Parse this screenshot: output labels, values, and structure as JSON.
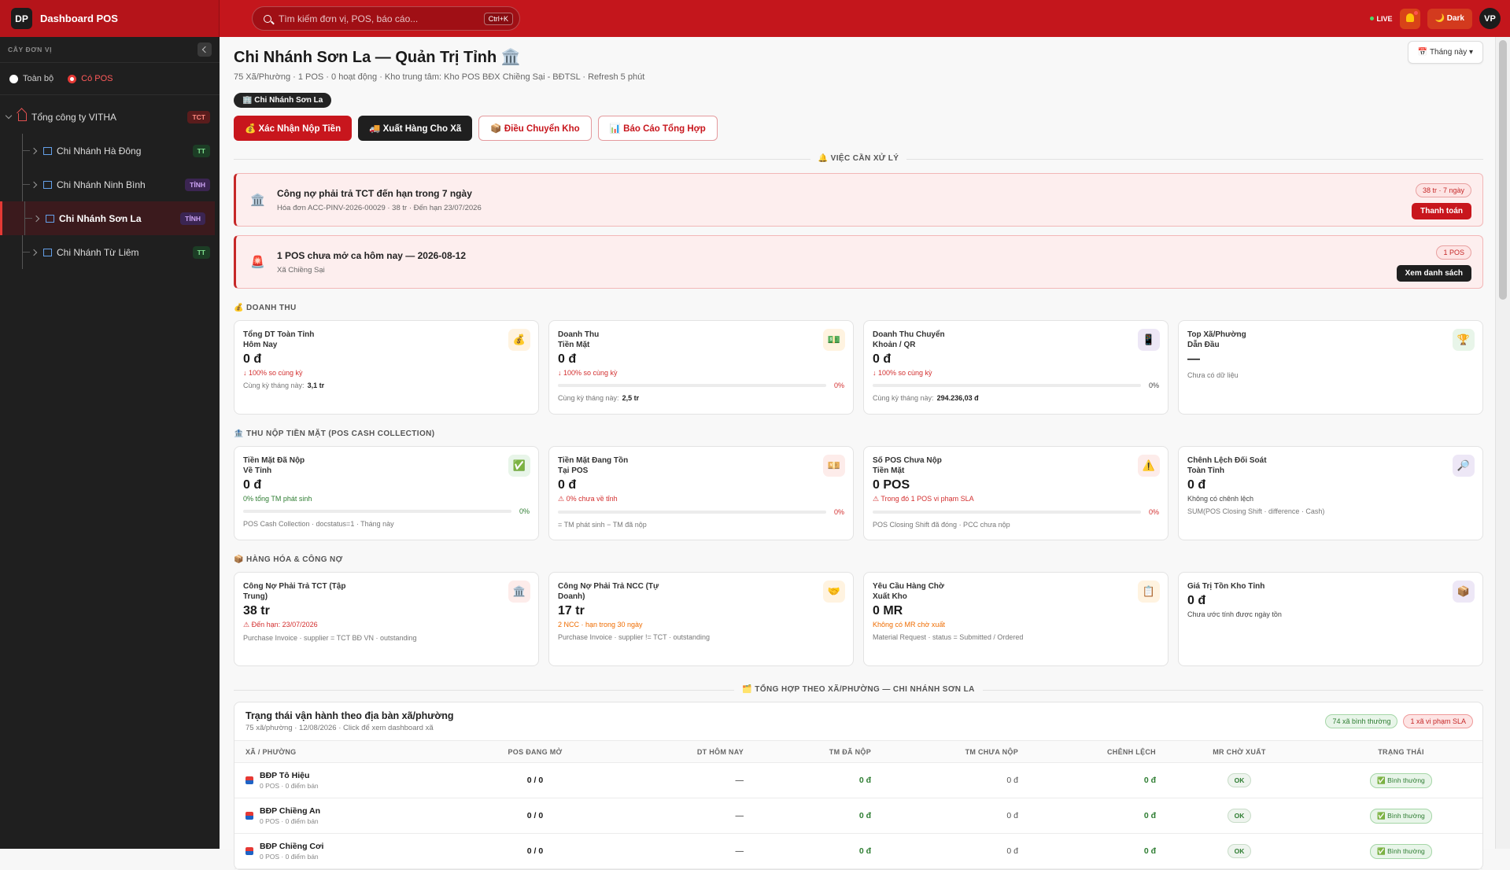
{
  "topbar": {
    "logo": "DP",
    "app_name": "Dashboard POS",
    "search_placeholder": "Tìm kiếm đơn vị, POS, báo cáo...",
    "search_shortcut": "Ctrl+K",
    "live": "LIVE",
    "theme": "🌙 Dark",
    "avatar": "VP"
  },
  "sidebar": {
    "title": "CÂY ĐƠN VỊ",
    "filters": [
      {
        "label": "Toàn bộ"
      },
      {
        "label": "Có POS",
        "selected": true
      }
    ],
    "tree": {
      "label": "Tổng công ty VITHA",
      "badge": "TCT",
      "tone": "red",
      "children": [
        {
          "label": "Chi Nhánh Hà Đông",
          "badge": "TT",
          "tone": "green"
        },
        {
          "label": "Chi Nhánh Ninh Bình",
          "badge": "TỈNH",
          "tone": "purple"
        },
        {
          "label": "Chi Nhánh Sơn La",
          "badge": "TỈNH",
          "tone": "purple",
          "active": true
        },
        {
          "label": "Chi Nhánh Từ Liêm",
          "badge": "TT",
          "tone": "green"
        }
      ]
    }
  },
  "header": {
    "title": "Chi Nhánh Sơn La — Quản Trị Tỉnh 🏛️",
    "subtitle": "75 Xã/Phường · 1 POS · 0 hoạt động · Kho trung tâm: Kho POS BĐX Chiềng Sại - BĐTSL · Refresh 5 phút",
    "period_button": "📅 Tháng này ▾",
    "chip": "🏢 Chi Nhánh Sơn La",
    "actions": [
      "💰 Xác Nhận Nộp Tiền",
      "🚚 Xuất Hàng Cho Xã",
      "📦 Điều Chuyển Kho",
      "📊 Báo Cáo Tổng Hợp"
    ]
  },
  "alerts": {
    "title": "🔔 VIỆC CẦN XỬ LÝ",
    "items": [
      {
        "icon": "🏛️",
        "title": "Công nợ phải trả TCT đến hạn trong 7 ngày",
        "detail": "Hóa đơn ACC-PINV-2026-00029 · 38 tr · Đến hạn 23/07/2026",
        "badge": "38 tr · 7 ngày",
        "button": "Thanh toán",
        "button_color": "#c8161d"
      },
      {
        "icon": "🚨",
        "title": "1 POS chưa mở ca hôm nay — 2026-08-12",
        "detail": "Xã Chiềng Sại",
        "badge": "1 POS",
        "button": "Xem danh sách",
        "button_color": "#1f1f1f"
      }
    ]
  },
  "sections": [
    {
      "title": "💰 DOANH THU",
      "cards": [
        {
          "label": "Tổng DT Toàn Tỉnh\nHôm Nay",
          "icon": "💰",
          "tint": "#fff3e0",
          "value": "0 đ",
          "delta": "↓ 100% so cùng kỳ",
          "delta_tone": "red",
          "note": "Cùng kỳ tháng này:",
          "note_value": "3,1 tr"
        },
        {
          "label": "Doanh Thu\nTiền Mặt",
          "icon": "💵",
          "tint": "#fff3e0",
          "value": "0 đ",
          "delta": "↓ 100% so cùng kỳ",
          "delta_tone": "red",
          "progress": "0%",
          "progress_tone": "red",
          "note": "Cùng kỳ tháng này:",
          "note_value": "2,5 tr"
        },
        {
          "label": "Doanh Thu Chuyển\nKhoản / QR",
          "icon": "📱",
          "tint": "#ede7f6",
          "value": "0 đ",
          "delta": "↓ 100% so cùng kỳ",
          "delta_tone": "red",
          "progress": "0%",
          "progress_tone": "dark",
          "note": "Cùng kỳ tháng này:",
          "note_value": "294.236,03 đ"
        },
        {
          "label": "Top Xã/Phường\nDẫn Đầu",
          "icon": "🏆",
          "tint": "#e8f5e9",
          "value": "—",
          "note": "Chưa có dữ liệu"
        }
      ]
    },
    {
      "title": "🏦 THU NỘP TIỀN MẶT (POS CASH COLLECTION)",
      "cards": [
        {
          "label": "Tiền Mặt Đã Nộp\nVề Tỉnh",
          "icon": "✅",
          "tint": "#e8f5e9",
          "value": "0 đ",
          "delta": "0% tổng TM phát sinh",
          "delta_tone": "green",
          "progress": "0%",
          "progress_tone": "green",
          "note": "POS Cash Collection · docstatus=1 · Tháng này"
        },
        {
          "label": "Tiền Mặt Đang Tồn\nTại POS",
          "icon": "💴",
          "tint": "#fdecea",
          "value": "0 đ",
          "delta": "⚠ 0% chưa về tỉnh",
          "delta_tone": "red",
          "progress": "0%",
          "progress_tone": "red",
          "note": "= TM phát sinh − TM đã nộp"
        },
        {
          "label": "Số POS Chưa Nộp\nTiền Mặt",
          "icon": "⚠️",
          "tint": "#fdecea",
          "value": "0 POS",
          "delta": "⚠ Trong đó 1 POS vi phạm SLA",
          "delta_tone": "red",
          "progress": "0%",
          "progress_tone": "red",
          "note": "POS Closing Shift đã đóng · PCC chưa nộp"
        },
        {
          "label": "Chênh Lệch Đối Soát\nToàn Tỉnh",
          "icon": "🔎",
          "tint": "#ede7f6",
          "value": "0 đ",
          "delta": "Không có chênh lệch",
          "delta_tone": "dark",
          "note": "SUM(POS Closing Shift · difference · Cash)"
        }
      ]
    },
    {
      "title": "📦 HÀNG HÓA & CÔNG NỢ",
      "cards": [
        {
          "label": "Công Nợ Phải Trả TCT (Tập\nTrung)",
          "icon": "🏛️",
          "tint": "#fdecea",
          "value": "38 tr",
          "delta": "⚠ Đến hạn: 23/07/2026",
          "delta_tone": "red",
          "note": "Purchase Invoice · supplier = TCT BĐ VN · outstanding"
        },
        {
          "label": "Công Nợ Phải Trả NCC (Tự\nDoanh)",
          "icon": "🤝",
          "tint": "#fff3e0",
          "value": "17 tr",
          "delta": "2 NCC · hạn trong 30 ngày",
          "delta_tone": "orange",
          "note": "Purchase Invoice · supplier != TCT · outstanding"
        },
        {
          "label": "Yêu Cầu Hàng Chờ\nXuất Kho",
          "icon": "📋",
          "tint": "#fff3e0",
          "value": "0 MR",
          "delta": "Không có MR chờ xuất",
          "delta_tone": "orange",
          "note": "Material Request · status = Submitted / Ordered"
        },
        {
          "label": "Giá Trị Tồn Kho Tỉnh",
          "icon": "📦",
          "tint": "#ede7f6",
          "value": "0 đ",
          "delta": "Chưa ước tính được ngày tồn",
          "delta_tone": "dark"
        }
      ]
    }
  ],
  "table": {
    "section_title": "🗂️ TỔNG HỢP THEO XÃ/PHƯỜNG — CHI NHÁNH SƠN LA",
    "title": "Trạng thái vận hành theo địa bàn xã/phường",
    "subtitle": "75 xã/phường · 12/08/2026 · Click để xem dashboard xã",
    "badges": [
      "74 xã bình thường",
      "1 xã vi phạm SLA"
    ],
    "columns": [
      "XÃ / PHƯỜNG",
      "POS ĐANG MỞ",
      "DT HÔM NAY",
      "TM ĐÃ NỘP",
      "TM CHƯA NỘP",
      "CHÊNH LỆCH",
      "MR CHỜ XUẤT",
      "TRẠNG THÁI"
    ],
    "rows": [
      {
        "name": "BĐP Tô Hiệu",
        "sub": "0 POS · 0 điểm bán",
        "cells": [
          "0 / 0",
          "—",
          "0 đ",
          "0 đ",
          "0 đ",
          "OK",
          "✅ Bình thường"
        ]
      },
      {
        "name": "BĐP Chiềng An",
        "sub": "0 POS · 0 điểm bán",
        "cells": [
          "0 / 0",
          "—",
          "0 đ",
          "0 đ",
          "0 đ",
          "OK",
          "✅ Bình thường"
        ]
      },
      {
        "name": "BĐP Chiềng Cơi",
        "sub": "0 POS · 0 điểm bán",
        "cells": [
          "0 / 0",
          "—",
          "0 đ",
          "0 đ",
          "0 đ",
          "OK",
          "✅ Bình thường"
        ]
      }
    ]
  }
}
